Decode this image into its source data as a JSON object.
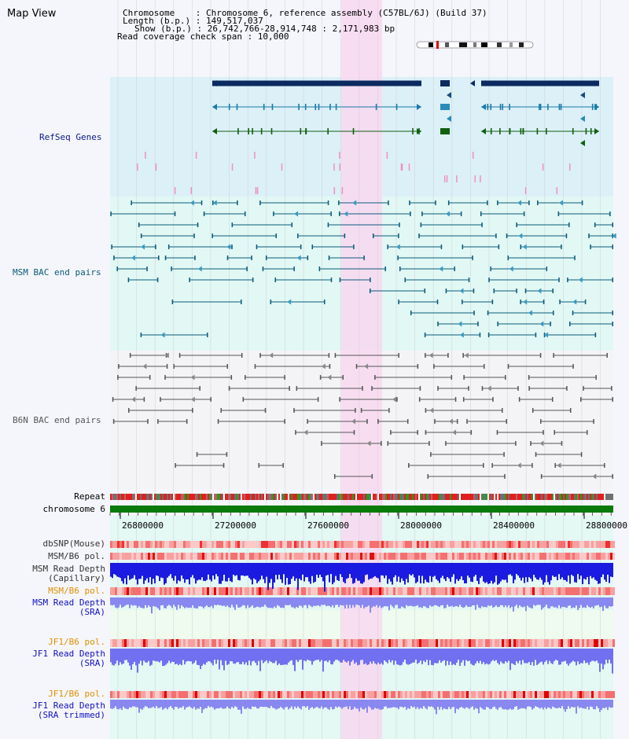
{
  "window": {
    "title": "Map View"
  },
  "header": {
    "chromosome_line": "Chromosome    : Chromosome 6, reference assembly (C57BL/6J) (Build 37)",
    "length_line": "Length (b.p.) : 149,517,037",
    "show_line": "Show (b.p.) : 26,742,766-28,914,748 : 2,171,983 bp",
    "coverage_line": "Read coverage check span : 10,000"
  },
  "tracks": {
    "refseq": "RefSeq Genes",
    "msm_bac": "MSM BAC end pairs",
    "b6n_bac": "B6N BAC end pairs",
    "repeat": "Repeat",
    "chromosome": "chromosome 6",
    "dbsnp": "dbSNP(Mouse)",
    "msm_b6_pol_1": "MSM/B6 pol.",
    "msm_read_depth_cap_1": "MSM Read Depth",
    "msm_read_depth_cap_2": "(Capillary)",
    "msm_b6_pol_2": "MSM/B6 pol.",
    "msm_read_depth_sra_1": "MSM Read Depth",
    "msm_read_depth_sra_2": "(SRA)",
    "jf1_b6_pol_1": "JF1/B6 pol.",
    "jf1_read_depth_sra_1": "JF1 Read Depth",
    "jf1_read_depth_sra_2": "(SRA)",
    "jf1_b6_pol_2": "JF1/B6 pol.",
    "jf1_read_depth_trim_1": "JF1 Read Depth",
    "jf1_read_depth_trim_2": "(SRA trimmed)"
  },
  "axis": {
    "ticks": [
      "26800000",
      "27200000",
      "27600000",
      "28000000",
      "28400000",
      "28800000"
    ]
  },
  "colors": {
    "refseq_label": "#0a1a8a",
    "msm_label": "#0a5a7a",
    "b6n_label": "#555555",
    "pol_label": "#e09000",
    "depth_label": "#1010c0",
    "highlight": "#f8d8f0"
  }
}
